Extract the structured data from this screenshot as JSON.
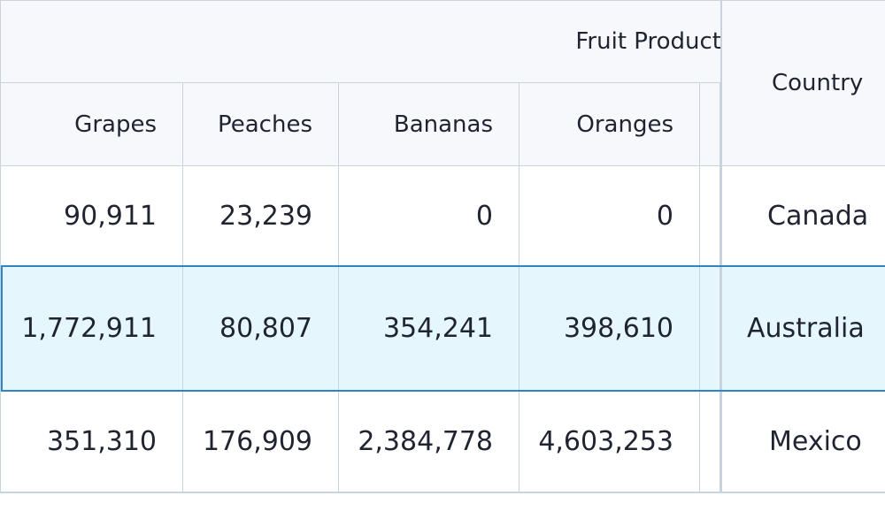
{
  "table": {
    "group_header": "Fruit Product",
    "country_header": "Country",
    "columns": [
      "Grapes",
      "Peaches",
      "Bananas",
      "Oranges"
    ],
    "rows": [
      {
        "country": "Canada",
        "values": [
          "90,911",
          "23,239",
          "0",
          "0"
        ],
        "selected": false
      },
      {
        "country": "Australia",
        "values": [
          "1,772,911",
          "80,807",
          "354,241",
          "398,610"
        ],
        "selected": true
      },
      {
        "country": "Mexico",
        "values": [
          "351,310",
          "176,909",
          "2,384,778",
          "4,603,253"
        ],
        "selected": false
      }
    ]
  },
  "colors": {
    "selected_row_bg": "#e6f6fd",
    "selected_row_border": "#2f86c6",
    "header_bg": "#f7f8fc",
    "grid_line": "#c9d3dd"
  }
}
